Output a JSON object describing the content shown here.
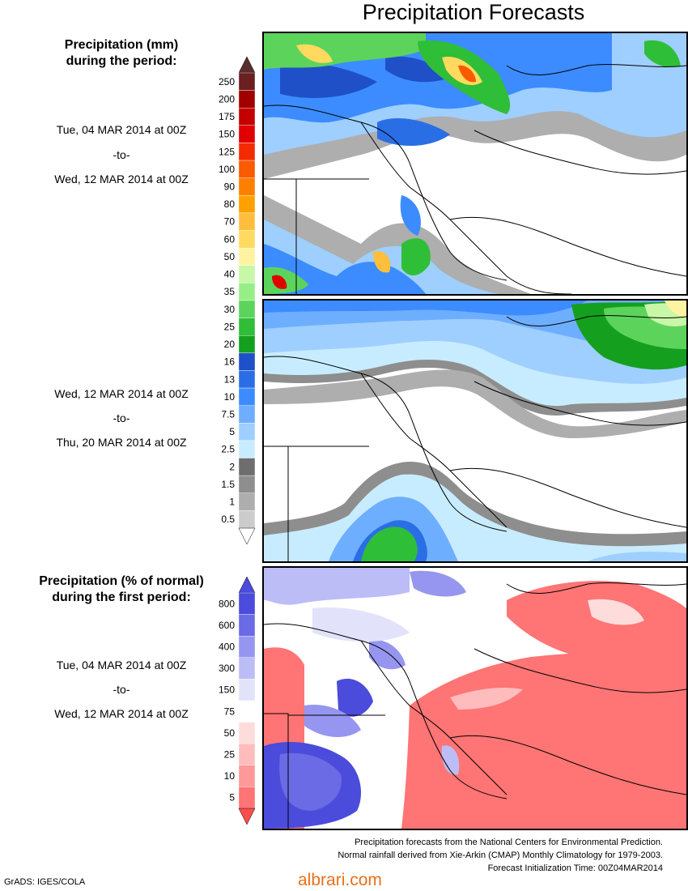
{
  "title": "Precipitation Forecasts",
  "legend_mm": {
    "header_line1": "Precipitation (mm)",
    "header_line2": "during the period:",
    "levels": [
      {
        "label": "250",
        "color": "#6b1f1f"
      },
      {
        "label": "200",
        "color": "#a00000"
      },
      {
        "label": "175",
        "color": "#c40000"
      },
      {
        "label": "150",
        "color": "#e00000"
      },
      {
        "label": "125",
        "color": "#f42b00"
      },
      {
        "label": "100",
        "color": "#fa5a00"
      },
      {
        "label": "90",
        "color": "#fd7f00"
      },
      {
        "label": "80",
        "color": "#fea000"
      },
      {
        "label": "70",
        "color": "#ffbe3c"
      },
      {
        "label": "60",
        "color": "#ffda5e"
      },
      {
        "label": "50",
        "color": "#fff2a0"
      },
      {
        "label": "40",
        "color": "#c8f7a8"
      },
      {
        "label": "35",
        "color": "#96ee87"
      },
      {
        "label": "30",
        "color": "#5cd45c"
      },
      {
        "label": "25",
        "color": "#2fbe38"
      },
      {
        "label": "20",
        "color": "#14a01e"
      },
      {
        "label": "16",
        "color": "#1f50c8"
      },
      {
        "label": "13",
        "color": "#2a6ee6"
      },
      {
        "label": "10",
        "color": "#3c8cff"
      },
      {
        "label": "7.5",
        "color": "#6eaeff"
      },
      {
        "label": "5",
        "color": "#9ecfff"
      },
      {
        "label": "2.5",
        "color": "#c8ecff"
      },
      {
        "label": "2",
        "color": "#6e6e6e"
      },
      {
        "label": "1.5",
        "color": "#8e8e8e"
      },
      {
        "label": "1",
        "color": "#aeaeae"
      },
      {
        "label": "0.5",
        "color": "#cccccc"
      }
    ]
  },
  "legend_pct": {
    "header_line1": "Precipitation (% of normal)",
    "header_line2": "during the first period:",
    "levels": [
      {
        "label": "800",
        "color": "#4b4bdc"
      },
      {
        "label": "600",
        "color": "#6b6be6"
      },
      {
        "label": "400",
        "color": "#9696f0"
      },
      {
        "label": "300",
        "color": "#bcbcf6"
      },
      {
        "label": "150",
        "color": "#e2e2fb"
      },
      {
        "label": "75",
        "color": "#ffffff"
      },
      {
        "label": "50",
        "color": "#ffdcdc"
      },
      {
        "label": "25",
        "color": "#ffbcbc"
      },
      {
        "label": "10",
        "color": "#ff9898"
      },
      {
        "label": "5",
        "color": "#ff7474"
      }
    ]
  },
  "periods": [
    {
      "from": "Tue, 04 MAR 2014 at 00Z",
      "sep": "-to-",
      "to": "Wed, 12 MAR 2014 at 00Z"
    },
    {
      "from": "Wed, 12 MAR 2014 at 00Z",
      "sep": "-to-",
      "to": "Thu, 20 MAR 2014 at 00Z"
    },
    {
      "from": "Tue, 04 MAR 2014 at 00Z",
      "sep": "-to-",
      "to": "Wed, 12 MAR 2014 at 00Z"
    }
  ],
  "footer": {
    "line1": "Precipitation forecasts from the National Centers for Environmental Prediction.",
    "line2": "Normal rainfall derived from Xie-Arkin (CMAP) Monthly Climatology for 1979-2003.",
    "line3": "Forecast Initialization Time: 00Z04MAR2014"
  },
  "credit": "GrADS: IGES/COLA",
  "watermark": "albrari.com"
}
